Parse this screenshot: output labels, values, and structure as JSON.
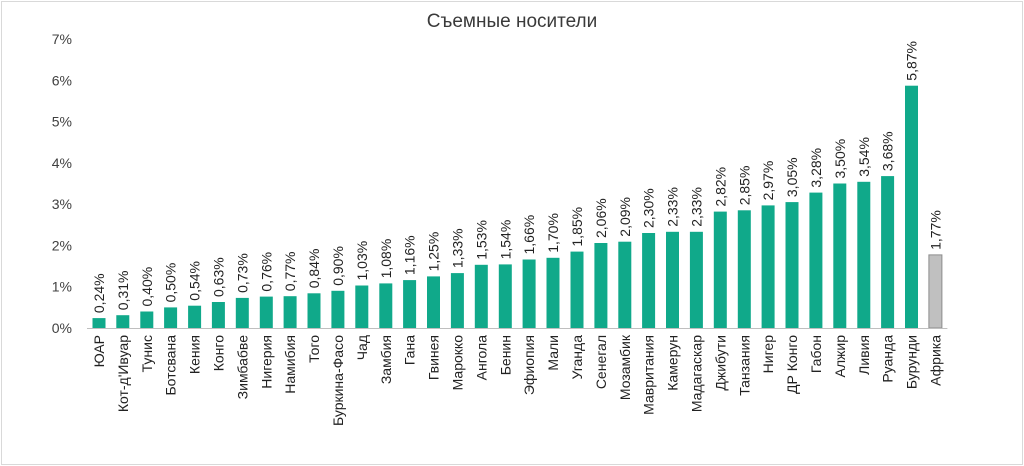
{
  "chart_data": {
    "type": "bar",
    "title": "Съемные носители",
    "y_ticks": [
      "0%",
      "1%",
      "2%",
      "3%",
      "4%",
      "5%",
      "6%",
      "7%"
    ],
    "ylim": [
      0,
      7
    ],
    "grid": false,
    "categories": [
      "ЮАР",
      "Кот-д'Ивуар",
      "Тунис",
      "Ботсвана",
      "Кения",
      "Конго",
      "Зимбабве",
      "Нигерия",
      "Намибия",
      "Того",
      "Буркина-Фасо",
      "Чад",
      "Замбия",
      "Гана",
      "Гвинея",
      "Марокко",
      "Ангола",
      "Бенин",
      "Эфиопия",
      "Мали",
      "Уганда",
      "Сенегал",
      "Мозамбик",
      "Мавритания",
      "Камерун",
      "Мадагаскар",
      "Джибути",
      "Танзания",
      "Нигер",
      "ДР Конго",
      "Габон",
      "Алжир",
      "Ливия",
      "Руанда",
      "Бурунди",
      "Африка"
    ],
    "values": [
      0.24,
      0.31,
      0.4,
      0.5,
      0.54,
      0.63,
      0.73,
      0.76,
      0.77,
      0.84,
      0.9,
      1.03,
      1.08,
      1.16,
      1.25,
      1.33,
      1.53,
      1.54,
      1.66,
      1.7,
      1.85,
      2.06,
      2.09,
      2.3,
      2.33,
      2.33,
      2.82,
      2.85,
      2.97,
      3.05,
      3.28,
      3.5,
      3.54,
      3.68,
      5.87,
      1.77
    ],
    "data_labels": [
      "0,24%",
      "0,31%",
      "0,40%",
      "0,50%",
      "0,54%",
      "0,63%",
      "0,73%",
      "0,76%",
      "0,77%",
      "0,84%",
      "0,90%",
      "1,03%",
      "1,08%",
      "1,16%",
      "1,25%",
      "1,33%",
      "1,53%",
      "1,54%",
      "1,66%",
      "1,70%",
      "1,85%",
      "2,06%",
      "2,09%",
      "2,30%",
      "2,33%",
      "2,33%",
      "2,82%",
      "2,85%",
      "2,97%",
      "3,05%",
      "3,28%",
      "3,50%",
      "3,54%",
      "3,68%",
      "5,87%",
      "1,77%"
    ],
    "colors": {
      "country_bar": "#10a98a",
      "total_bar": "#c0c0c0",
      "total_bar_border": "#8c8c8c",
      "axis": "#bfbfbf"
    },
    "highlighted_category": "Африка"
  }
}
